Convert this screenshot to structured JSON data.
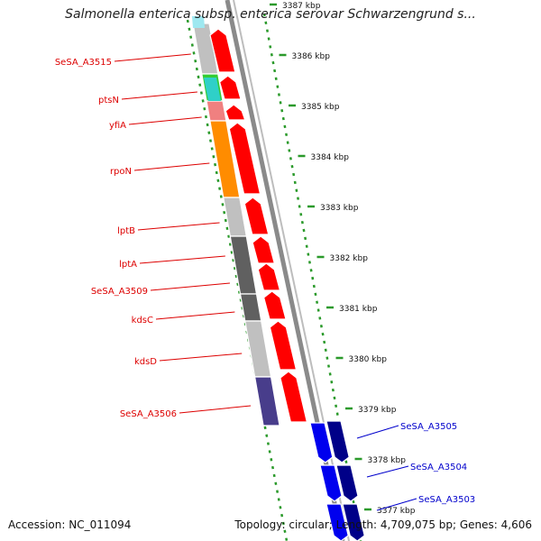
{
  "title": "Salmonella enterica subsp. enterica serovar Schwarzengrund s...",
  "footer": {
    "accession": "Accession: NC_011094",
    "info": "Topology: circular; Length: 4,709,075 bp; Genes: 4,606"
  },
  "colors": {
    "ruler": "#2b9a2b",
    "forward_arrow": "#ff0000",
    "reverse_arrow": "#0000ee",
    "reverse_arrow_dark": "#000088",
    "forward_label": "#dd0000",
    "reverse_label": "#0000cc"
  },
  "ruler_ticks": [
    "3387 kbp",
    "3386 kbp",
    "3385 kbp",
    "3384 kbp",
    "3383 kbp",
    "3382 kbp",
    "3381 kbp",
    "3380 kbp",
    "3379 kbp",
    "3378 kbp",
    "3377 kbp"
  ],
  "forward_genes": [
    {
      "label": "SeSA_A3515",
      "cog_color": "#c0c0c0"
    },
    {
      "label": "ptsN",
      "cog_color": "#33cc33"
    },
    {
      "label": "yfiA",
      "cog_color": "#f08080"
    },
    {
      "label": "rpoN",
      "cog_color": "#ff8c00"
    },
    {
      "label": "lptB",
      "cog_color": "#c0c0c0"
    },
    {
      "label": "lptA",
      "cog_color": "#606060"
    },
    {
      "label": "SeSA_A3509",
      "cog_color": "#606060"
    },
    {
      "label": "kdsC",
      "cog_color": "#c0c0c0"
    },
    {
      "label": "kdsD",
      "cog_color": "#6b8e23"
    },
    {
      "label": "SeSA_A3506",
      "cog_color": "#483d8b"
    }
  ],
  "reverse_genes": [
    {
      "label": "SeSA_A3505"
    },
    {
      "label": "SeSA_A3504"
    },
    {
      "label": "SeSA_A3503"
    }
  ]
}
